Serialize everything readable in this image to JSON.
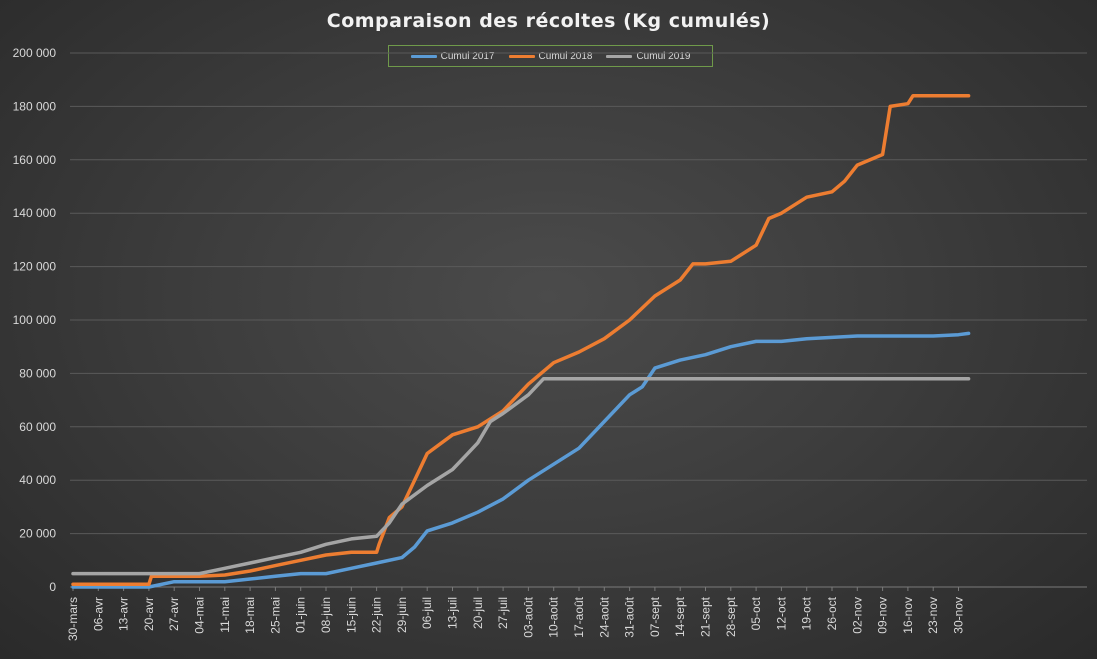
{
  "chart_data": {
    "type": "line",
    "title": "Comparaison des récoltes (Kg cumulés)",
    "xlabel": "",
    "ylabel": "",
    "ylim": [
      0,
      200000
    ],
    "yticks": [
      "0",
      "20 000",
      "40 000",
      "60 000",
      "80 000",
      "100 000",
      "120 000",
      "140 000",
      "160 000",
      "180 000",
      "200 000"
    ],
    "categories": [
      "30-mars",
      "06-avr",
      "13-avr",
      "20-avr",
      "27-avr",
      "04-mai",
      "11-mai",
      "18-mai",
      "25-mai",
      "01-juin",
      "08-juin",
      "15-juin",
      "22-juin",
      "29-juin",
      "06-juil",
      "13-juil",
      "20-juil",
      "27-juil",
      "03-août",
      "10-août",
      "17-août",
      "24-août",
      "31-août",
      "07-sept",
      "14-sept",
      "21-sept",
      "28-sept",
      "05-oct",
      "12-oct",
      "19-oct",
      "26-oct",
      "02-nov",
      "09-nov",
      "16-nov",
      "23-nov",
      "30-nov"
    ],
    "grid": true,
    "legend_position": "top-center",
    "series": [
      {
        "name": "Cumul 2017",
        "color": "#5b9bd5",
        "points": [
          [
            0,
            0
          ],
          [
            3,
            0
          ],
          [
            4,
            2000
          ],
          [
            6,
            2000
          ],
          [
            7,
            3000
          ],
          [
            8,
            4000
          ],
          [
            9,
            5000
          ],
          [
            10,
            5000
          ],
          [
            11,
            7000
          ],
          [
            12,
            9000
          ],
          [
            13,
            11000
          ],
          [
            13.5,
            15000
          ],
          [
            14,
            21000
          ],
          [
            15,
            24000
          ],
          [
            16,
            28000
          ],
          [
            17,
            33000
          ],
          [
            18,
            40000
          ],
          [
            19,
            46000
          ],
          [
            20,
            52000
          ],
          [
            21,
            62000
          ],
          [
            22,
            72000
          ],
          [
            22.5,
            75000
          ],
          [
            23,
            82000
          ],
          [
            24,
            85000
          ],
          [
            25,
            87000
          ],
          [
            26,
            90000
          ],
          [
            27,
            92000
          ],
          [
            28,
            92000
          ],
          [
            29,
            93000
          ],
          [
            30,
            93500
          ],
          [
            31,
            94000
          ],
          [
            32,
            94000
          ],
          [
            33,
            94000
          ],
          [
            34,
            94000
          ],
          [
            35,
            94500
          ],
          [
            35.4,
            95000
          ]
        ]
      },
      {
        "name": "Cumul 2018",
        "color": "#ed7d31",
        "points": [
          [
            0,
            1000
          ],
          [
            3,
            1000
          ],
          [
            3.1,
            4000
          ],
          [
            5,
            4000
          ],
          [
            6,
            4500
          ],
          [
            7,
            6000
          ],
          [
            8,
            8000
          ],
          [
            9,
            10000
          ],
          [
            10,
            12000
          ],
          [
            11,
            13000
          ],
          [
            12,
            13000
          ],
          [
            12.1,
            16000
          ],
          [
            12.5,
            26000
          ],
          [
            13,
            30000
          ],
          [
            13.5,
            40000
          ],
          [
            14,
            50000
          ],
          [
            15,
            57000
          ],
          [
            16,
            60000
          ],
          [
            17,
            66000
          ],
          [
            18,
            76000
          ],
          [
            19,
            84000
          ],
          [
            20,
            88000
          ],
          [
            21,
            93000
          ],
          [
            22,
            100000
          ],
          [
            23,
            109000
          ],
          [
            24,
            115000
          ],
          [
            24.5,
            121000
          ],
          [
            25,
            121000
          ],
          [
            26,
            122000
          ],
          [
            27,
            128000
          ],
          [
            27.5,
            138000
          ],
          [
            28,
            140000
          ],
          [
            29,
            146000
          ],
          [
            30,
            148000
          ],
          [
            30.5,
            152000
          ],
          [
            31,
            158000
          ],
          [
            32,
            162000
          ],
          [
            32.3,
            180000
          ],
          [
            33,
            181000
          ],
          [
            33.2,
            184000
          ],
          [
            35.4,
            184000
          ]
        ]
      },
      {
        "name": "Cumul 2019",
        "color": "#a5a5a5",
        "points": [
          [
            0,
            5000
          ],
          [
            5,
            5000
          ],
          [
            6,
            7000
          ],
          [
            7,
            9000
          ],
          [
            8,
            11000
          ],
          [
            9,
            13000
          ],
          [
            10,
            16000
          ],
          [
            11,
            18000
          ],
          [
            12,
            19000
          ],
          [
            12.5,
            24000
          ],
          [
            13,
            31000
          ],
          [
            14,
            38000
          ],
          [
            15,
            44000
          ],
          [
            15.5,
            49000
          ],
          [
            16,
            54000
          ],
          [
            16.5,
            62000
          ],
          [
            17,
            65000
          ],
          [
            18,
            72000
          ],
          [
            18.6,
            78000
          ],
          [
            35.4,
            78000
          ]
        ]
      }
    ]
  }
}
